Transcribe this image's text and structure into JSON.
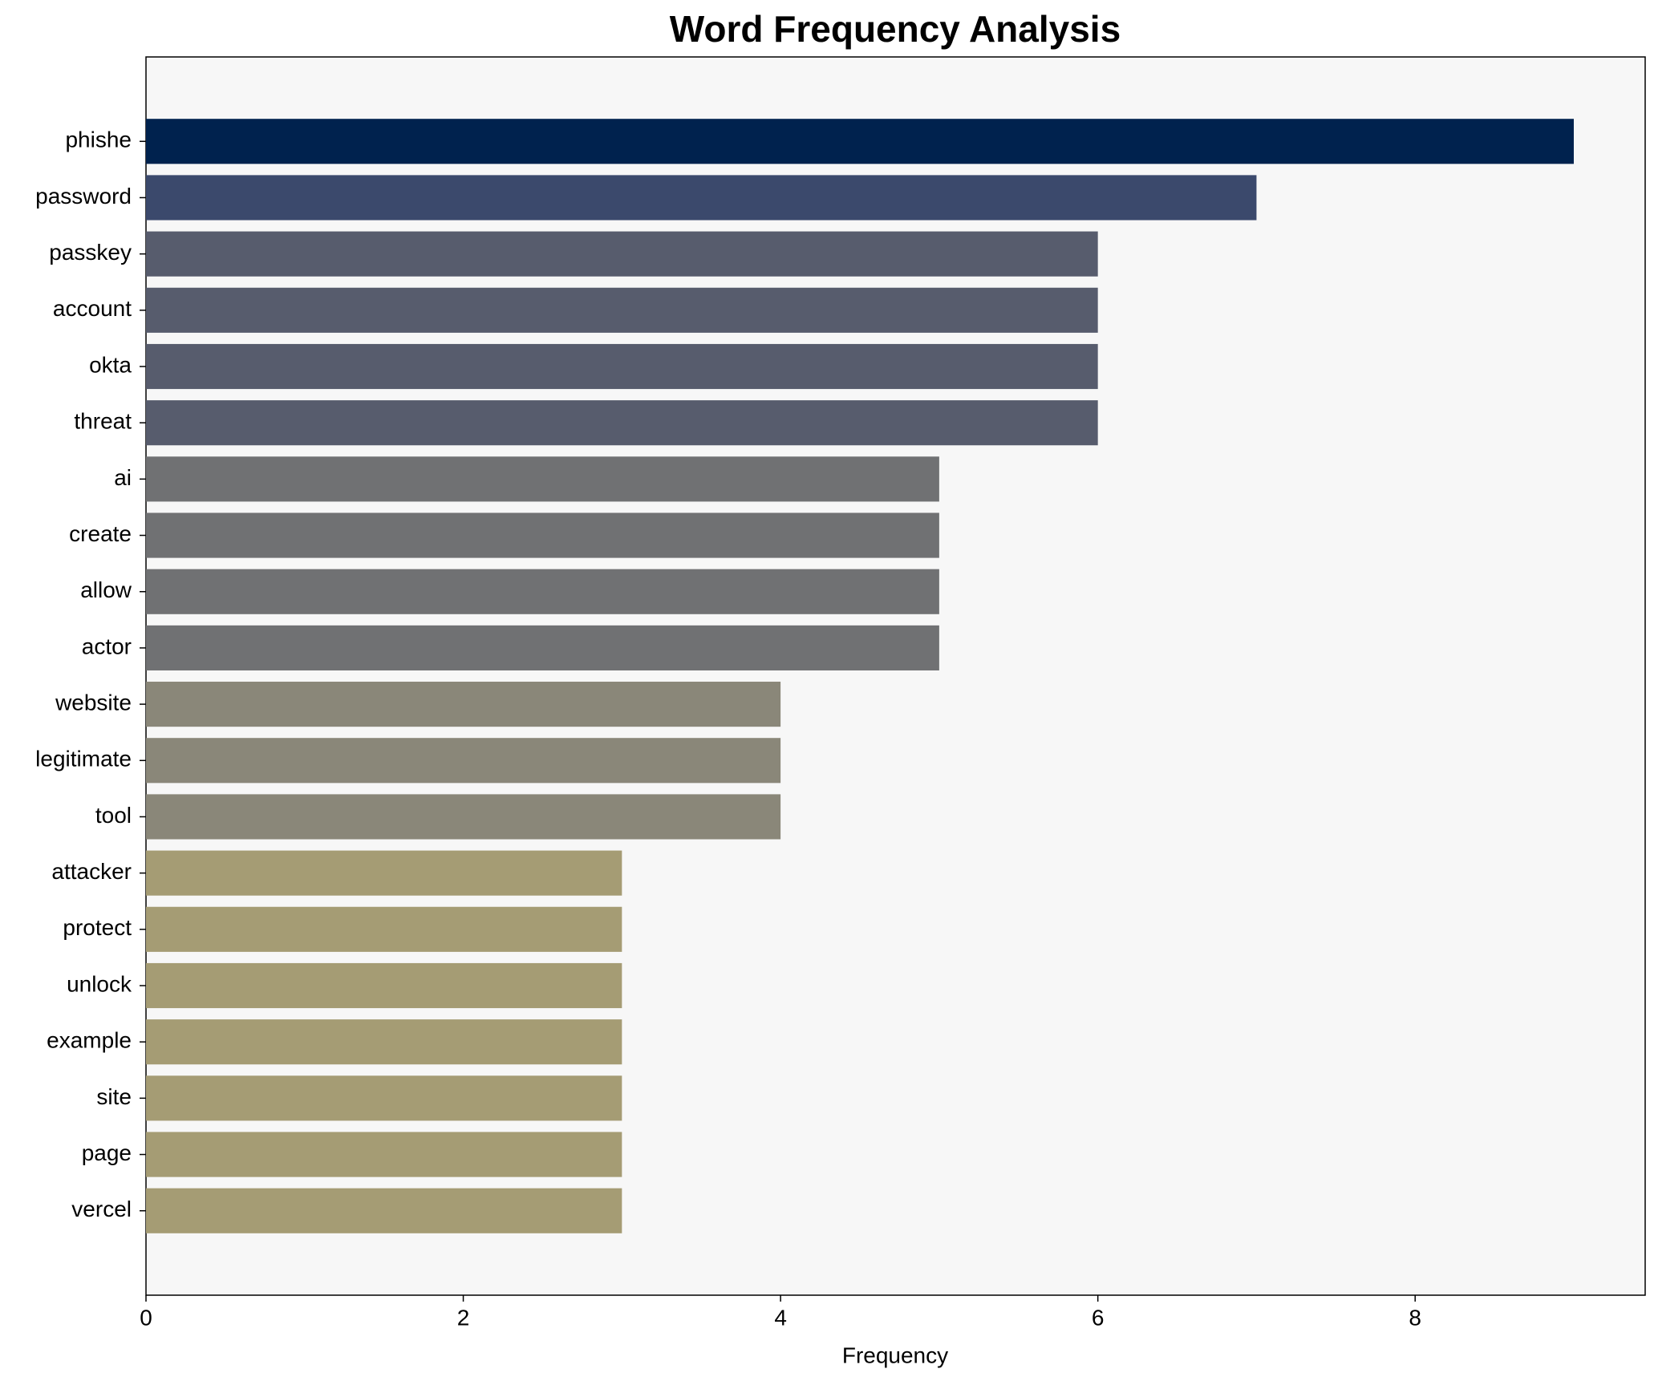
{
  "chart_data": {
    "type": "bar",
    "orientation": "horizontal",
    "title": "Word Frequency Analysis",
    "x_label": "Frequency",
    "categories": [
      "phishe",
      "password",
      "passkey",
      "account",
      "okta",
      "threat",
      "ai",
      "create",
      "allow",
      "actor",
      "website",
      "legitimate",
      "tool",
      "attacker",
      "protect",
      "unlock",
      "example",
      "site",
      "page",
      "vercel"
    ],
    "values": [
      9,
      7,
      6,
      6,
      6,
      6,
      5,
      5,
      5,
      5,
      4,
      4,
      4,
      3,
      3,
      3,
      3,
      3,
      3,
      3
    ],
    "colors": [
      "#00224e",
      "#3b496c",
      "#575c6d",
      "#575c6d",
      "#575c6d",
      "#575c6d",
      "#707173",
      "#707173",
      "#707173",
      "#707173",
      "#8a8779",
      "#8a8779",
      "#8a8779",
      "#a59c74",
      "#a59c74",
      "#a59c74",
      "#a59c74",
      "#a59c74",
      "#a59c74",
      "#a59c74"
    ],
    "xlim": [
      0,
      9.45
    ],
    "xticks": [
      0,
      2,
      4,
      6,
      8
    ],
    "grid": false,
    "background": "#f7f7f7"
  }
}
